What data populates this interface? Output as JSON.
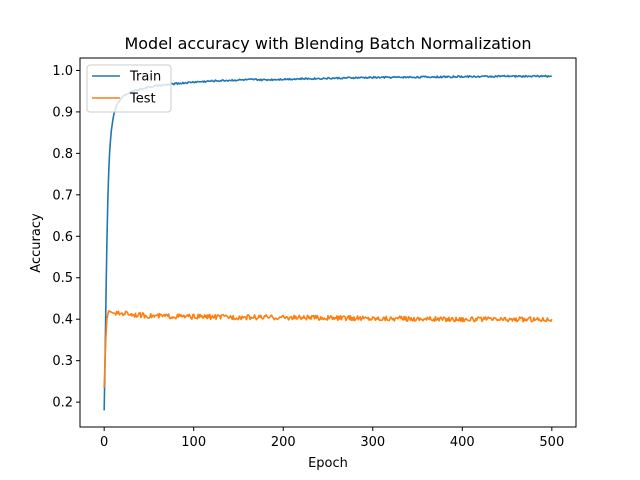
{
  "chart_data": {
    "type": "line",
    "title": "Model accuracy with Blending Batch Normalization",
    "xlabel": "Epoch",
    "ylabel": "Accuracy",
    "xlim": [
      -27,
      527
    ],
    "ylim": [
      0.14,
      1.03
    ],
    "xticks": [
      0,
      100,
      200,
      300,
      400,
      500
    ],
    "yticks": [
      0.2,
      0.3,
      0.4,
      0.5,
      0.6,
      0.7,
      0.8,
      0.9,
      1.0
    ],
    "xtick_labels": [
      "0",
      "100",
      "200",
      "300",
      "400",
      "500"
    ],
    "ytick_labels": [
      "0.2",
      "0.3",
      "0.4",
      "0.5",
      "0.6",
      "0.7",
      "0.8",
      "0.9",
      "1.0"
    ],
    "grid": false,
    "legend_position": "upper-left",
    "series": [
      {
        "name": "Train",
        "color": "#1f77b4",
        "x": [
          0,
          1,
          2,
          3,
          4,
          5,
          6,
          7,
          8,
          10,
          12,
          15,
          20,
          25,
          30,
          40,
          50,
          60,
          80,
          100,
          125,
          150,
          170,
          175,
          200,
          250,
          300,
          350,
          400,
          450,
          500
        ],
        "y": [
          0.18,
          0.3,
          0.45,
          0.58,
          0.68,
          0.75,
          0.8,
          0.83,
          0.855,
          0.885,
          0.905,
          0.92,
          0.935,
          0.943,
          0.948,
          0.955,
          0.96,
          0.963,
          0.968,
          0.972,
          0.975,
          0.977,
          0.978,
          0.977,
          0.979,
          0.981,
          0.983,
          0.984,
          0.985,
          0.986,
          0.986
        ]
      },
      {
        "name": "Test",
        "color": "#ff7f0e",
        "x": [
          0,
          1,
          2,
          3,
          5,
          7,
          10,
          15,
          20,
          25,
          30,
          40,
          50,
          75,
          100,
          150,
          200,
          250,
          300,
          350,
          400,
          450,
          500
        ],
        "y": [
          0.235,
          0.3,
          0.36,
          0.4,
          0.42,
          0.418,
          0.415,
          0.413,
          0.414,
          0.415,
          0.412,
          0.41,
          0.408,
          0.407,
          0.406,
          0.405,
          0.404,
          0.403,
          0.402,
          0.401,
          0.4,
          0.399,
          0.4
        ]
      }
    ]
  }
}
